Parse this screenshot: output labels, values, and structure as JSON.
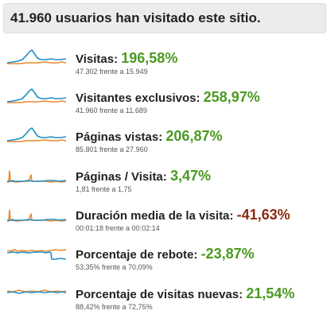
{
  "header": {
    "text": "41.960 usuarios han visitado este sitio."
  },
  "colors": {
    "orange": "#e8892c",
    "blue": "#1f8fc4",
    "positive": "#4a9a1f",
    "negative": "#8a2a10"
  },
  "metrics": [
    {
      "label": "Visitas",
      "value": "196,58%",
      "trend": "positive",
      "sub": "47.302 frente a 15.949",
      "sparkline": "visits"
    },
    {
      "label": "Visitantes exclusivos",
      "value": "258,97%",
      "trend": "positive",
      "sub": "41.960 frente a 11.689",
      "sparkline": "visits"
    },
    {
      "label": "Páginas vistas",
      "value": "206,87%",
      "trend": "positive",
      "sub": "85.801 frente a 27.960",
      "sparkline": "visits"
    },
    {
      "label": "Páginas / Visita",
      "value": "3,47%",
      "trend": "positive",
      "sub": "1,81 frente a 1,75",
      "sparkline": "spikes"
    },
    {
      "label": "Duración media de la visita",
      "value": "-41,63%",
      "trend": "negative",
      "sub": "00:01:18 frente a 00:02:14",
      "sparkline": "spikes"
    },
    {
      "label": "Porcentaje de rebote",
      "value": "-23,87%",
      "trend": "positive",
      "sub": "53,35% frente a 70,09%",
      "sparkline": "bounce"
    },
    {
      "label": "Porcentaje de visitas nuevas",
      "value": "21,54%",
      "trend": "positive",
      "sub": "88,42% frente a 72,75%",
      "sparkline": "flat"
    }
  ]
}
